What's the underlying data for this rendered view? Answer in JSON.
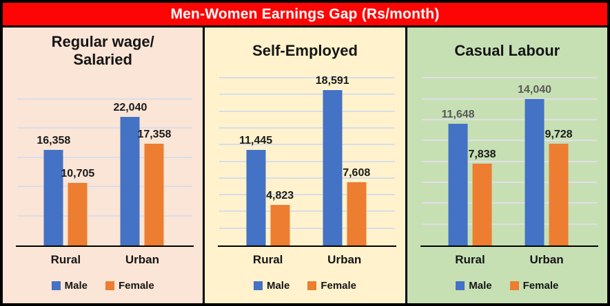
{
  "header": {
    "title": "Men-Women Earnings Gap (Rs/month)",
    "bg_color": "#FE0505",
    "text_color": "#FFFFFF"
  },
  "colors": {
    "male_bar": "#4472C4",
    "female_bar": "#ED7D31",
    "border": "#000000"
  },
  "chart_data": [
    {
      "type": "bar",
      "title": "Regular wage/ Salaried",
      "title_lines": [
        "Regular wage/",
        "Salaried"
      ],
      "categories": [
        "Rural",
        "Urban"
      ],
      "series": [
        {
          "name": "Male",
          "color": "#4472C4",
          "values": [
            16358,
            22040
          ],
          "labels": [
            "16,358",
            "22,040"
          ],
          "label_color": "#1A1A1A"
        },
        {
          "name": "Female",
          "color": "#ED7D31",
          "values": [
            10705,
            17358
          ],
          "labels": [
            "10,705",
            "17,358"
          ],
          "label_color": "#1A1A1A"
        }
      ],
      "legend": [
        "Male",
        "Female"
      ],
      "legend_position": "bottom",
      "grid": true,
      "ylim": [
        0,
        30000
      ],
      "gridline_step": 5000,
      "panel_bg": "#FBE5D6",
      "gridline_color": "#D8DEE9"
    },
    {
      "type": "bar",
      "title": "Self-Employed",
      "title_lines": [
        "Self-Employed"
      ],
      "categories": [
        "Rural",
        "Urban"
      ],
      "series": [
        {
          "name": "Male",
          "color": "#4472C4",
          "values": [
            11445,
            18591
          ],
          "labels": [
            "11,445",
            "18,591"
          ],
          "label_color": "#1A1A1A"
        },
        {
          "name": "Female",
          "color": "#ED7D31",
          "values": [
            4823,
            7608
          ],
          "labels": [
            "4,823",
            "7,608"
          ],
          "label_color": "#1A1A1A"
        }
      ],
      "legend": [
        "Male",
        "Female"
      ],
      "legend_position": "bottom",
      "grid": true,
      "ylim": [
        0,
        21000
      ],
      "gridline_step": 2000,
      "panel_bg": "#FFF2CC",
      "gridline_color": "#D8DEE9"
    },
    {
      "type": "bar",
      "title": "Casual Labour",
      "title_lines": [
        "Casual Labour"
      ],
      "categories": [
        "Rural",
        "Urban"
      ],
      "series": [
        {
          "name": "Male",
          "color": "#4472C4",
          "values": [
            11648,
            14040
          ],
          "labels": [
            "11,648",
            "14,040"
          ],
          "label_color": "#595959"
        },
        {
          "name": "Female",
          "color": "#ED7D31",
          "values": [
            7838,
            9728
          ],
          "labels": [
            "7,838",
            "9,728"
          ],
          "label_color": "#1A1A1A"
        }
      ],
      "legend": [
        "Male",
        "Female"
      ],
      "legend_position": "bottom",
      "grid": true,
      "ylim": [
        0,
        16800
      ],
      "gridline_step": 2000,
      "panel_bg": "#C6E0B4",
      "gridline_color": "#E2DDE7"
    }
  ]
}
